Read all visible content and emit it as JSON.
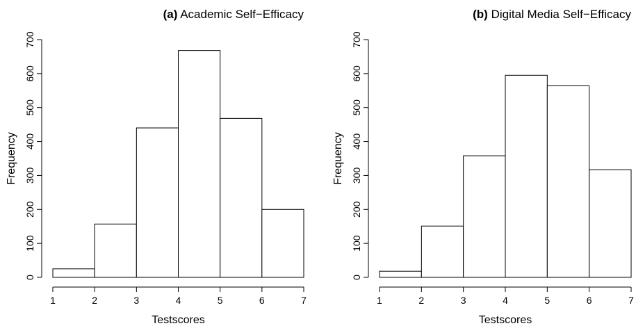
{
  "chart_data": [
    {
      "type": "histogram",
      "panel": "(a)",
      "title": "Academic Self−Efficacy",
      "xlabel": "Testscores",
      "ylabel": "Frequency",
      "bins": [
        1,
        2,
        3,
        4,
        5,
        6,
        7
      ],
      "counts": [
        25,
        157,
        440,
        668,
        468,
        200
      ],
      "xlim": [
        1,
        7
      ],
      "xticks": [
        1,
        2,
        3,
        4,
        5,
        6,
        7
      ],
      "ylim": [
        0,
        700
      ],
      "yticks": [
        0,
        100,
        200,
        300,
        400,
        500,
        600,
        700
      ],
      "color": "#ffffff"
    },
    {
      "type": "histogram",
      "panel": "(b)",
      "title": "Digital Media Self−Efficacy",
      "xlabel": "Testscores",
      "ylabel": "Frequency",
      "bins": [
        1,
        2,
        3,
        4,
        5,
        6,
        7
      ],
      "counts": [
        18,
        151,
        358,
        595,
        564,
        317
      ],
      "xlim": [
        1,
        7
      ],
      "xticks": [
        1,
        2,
        3,
        4,
        5,
        6,
        7
      ],
      "ylim": [
        0,
        700
      ],
      "yticks": [
        0,
        100,
        200,
        300,
        400,
        500,
        600,
        700
      ],
      "color": "#ffffff"
    }
  ]
}
